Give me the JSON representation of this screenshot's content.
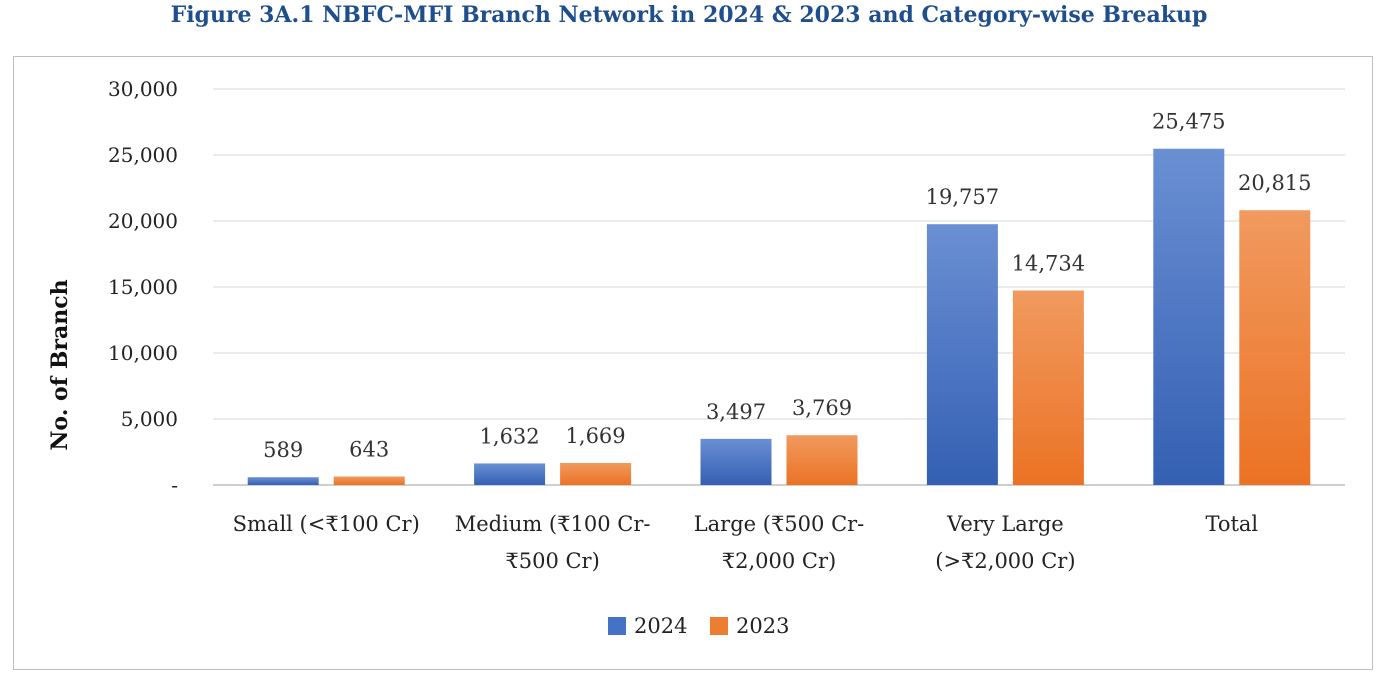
{
  "chart_data": {
    "type": "bar",
    "title": "Figure 3A.1 NBFC-MFI Branch Network in 2024 & 2023 and Category-wise Breakup",
    "xlabel": "",
    "ylabel": "No. of Branch",
    "ylim": [
      0,
      30000
    ],
    "yticks": [
      0,
      5000,
      10000,
      15000,
      20000,
      25000,
      30000
    ],
    "ytick_labels": [
      "-",
      "5,000",
      "10,000",
      "15,000",
      "20,000",
      "25,000",
      "30,000"
    ],
    "grid": true,
    "legend_position": "bottom",
    "categories": [
      [
        "Small (<₹100 Cr)"
      ],
      [
        "Medium (₹100 Cr-",
        "₹500 Cr)"
      ],
      [
        "Large (₹500 Cr-",
        "₹2,000 Cr)"
      ],
      [
        "Very Large",
        "(>₹2,000 Cr)"
      ],
      [
        "Total"
      ]
    ],
    "series": [
      {
        "name": "2024",
        "color": "#4472c4",
        "values": [
          589,
          1632,
          3497,
          19757,
          25475
        ],
        "labels": [
          "589",
          "1,632",
          "3,497",
          "19,757",
          "25,475"
        ]
      },
      {
        "name": "2023",
        "color": "#ed7d31",
        "values": [
          643,
          1669,
          3769,
          14734,
          20815
        ],
        "labels": [
          "643",
          "1,669",
          "3,769",
          "14,734",
          "20,815"
        ]
      }
    ]
  }
}
